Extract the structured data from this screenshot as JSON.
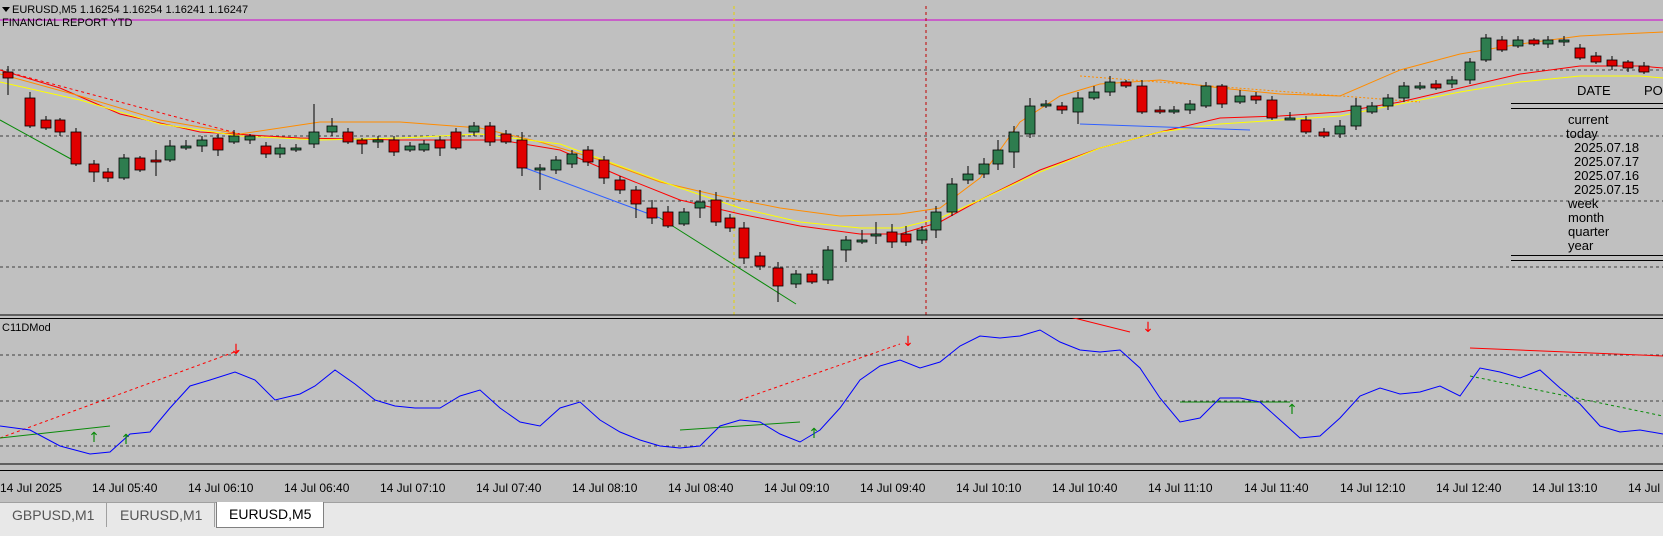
{
  "chart": {
    "symbol_info": "EURUSD,M5  1.16254 1.16254 1.16241 1.16247",
    "report_title": "FINANCIAL REPORT YTD",
    "panel": {
      "header_date": "DATE",
      "header_po": "PO",
      "rows": [
        "current",
        "today",
        "2025.07.18",
        "2025.07.17",
        "2025.07.16",
        "2025.07.15",
        "week",
        "month",
        "quarter",
        "year"
      ]
    }
  },
  "indicator": {
    "name": "C11DMod"
  },
  "time_axis": {
    "labels": [
      "14 Jul 2025",
      "14 Jul 05:40",
      "14 Jul 06:10",
      "14 Jul 06:40",
      "14 Jul 07:10",
      "14 Jul 07:40",
      "14 Jul 08:10",
      "14 Jul 08:40",
      "14 Jul 09:10",
      "14 Jul 09:40",
      "14 Jul 10:10",
      "14 Jul 10:40",
      "14 Jul 11:10",
      "14 Jul 11:40",
      "14 Jul 12:10",
      "14 Jul 12:40",
      "14 Jul 13:10",
      "14 Jul"
    ]
  },
  "tabs": [
    {
      "label": "GBPUSD,M1",
      "active": false
    },
    {
      "label": "EURUSD,M1",
      "active": false
    },
    {
      "label": "EURUSD,M5",
      "active": true
    }
  ],
  "colors": {
    "background": "#c0c0c0",
    "bull": "#2e7d4f",
    "bear": "#e00000",
    "oscillator": "#0000ff",
    "ma_red": "#ff0000",
    "ma_orange": "#ff8c00",
    "ma_yellow": "#ffff00",
    "period_line": "#ff00ff"
  }
}
